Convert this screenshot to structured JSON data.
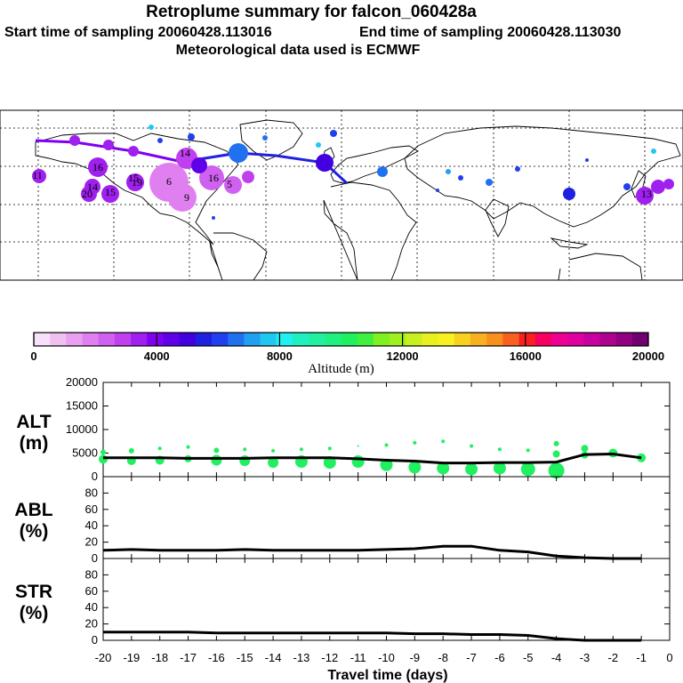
{
  "header": {
    "title": "Retroplume summary for falcon_060428a",
    "start_label": "Start time of sampling 20060428.113016",
    "end_label": "End time of sampling 20060428.113030",
    "met_label": "Meteorological data used is ECMWF"
  },
  "map_labels": [
    "16",
    "15",
    "6",
    "16",
    "5",
    "14",
    "20",
    "19",
    "15",
    "14",
    "11",
    "13",
    "9"
  ],
  "colorbar": {
    "title": "Altitude (m)",
    "ticks": [
      "0",
      "4000",
      "8000",
      "12000",
      "16000",
      "20000"
    ],
    "colors": [
      "#f8e0f8",
      "#f0c0f0",
      "#e8a0f0",
      "#e080f0",
      "#d060f0",
      "#c040f0",
      "#a020f0",
      "#8000f0",
      "#6000e8",
      "#4000e0",
      "#2020e0",
      "#2040f0",
      "#2070f0",
      "#20a0f0",
      "#20c8f0",
      "#20f0f0",
      "#20f0c0",
      "#20f0a0",
      "#20f080",
      "#20f060",
      "#40f040",
      "#80f020",
      "#a0f020",
      "#c8f020",
      "#e8f020",
      "#f8f020",
      "#f8d020",
      "#f8b020",
      "#f89020",
      "#f86020",
      "#f82020",
      "#f80060",
      "#f00090",
      "#e000a0",
      "#c800a0",
      "#b00090",
      "#900080",
      "#700070"
    ]
  },
  "chart_data": [
    {
      "type": "line",
      "name": "ALT",
      "ylabel": [
        "ALT",
        "(m)"
      ],
      "ylim": [
        0,
        20000
      ],
      "yticks": [
        "0",
        "5000",
        "10000",
        "15000",
        "20000"
      ],
      "x": [
        -20,
        -19,
        -18,
        -17,
        -16,
        -15,
        -14,
        -13,
        -12,
        -11,
        -10,
        -9,
        -8,
        -7,
        -6,
        -5,
        -4,
        -3,
        -2,
        -1
      ],
      "values": [
        4000,
        4000,
        4000,
        3900,
        3900,
        3900,
        4000,
        4000,
        4000,
        3800,
        3500,
        3300,
        2900,
        2900,
        3000,
        3000,
        3100,
        4700,
        4800,
        4000
      ],
      "clusters": [
        {
          "x": -20,
          "y": 5200,
          "r": 3
        },
        {
          "x": -20,
          "y": 3700,
          "r": 5
        },
        {
          "x": -19,
          "y": 5500,
          "r": 3
        },
        {
          "x": -19,
          "y": 3400,
          "r": 5
        },
        {
          "x": -18,
          "y": 6000,
          "r": 2
        },
        {
          "x": -18,
          "y": 3500,
          "r": 5
        },
        {
          "x": -17,
          "y": 6300,
          "r": 2
        },
        {
          "x": -17,
          "y": 3800,
          "r": 4
        },
        {
          "x": -16,
          "y": 5600,
          "r": 3
        },
        {
          "x": -16,
          "y": 3500,
          "r": 6
        },
        {
          "x": -15,
          "y": 5800,
          "r": 2
        },
        {
          "x": -15,
          "y": 3400,
          "r": 6
        },
        {
          "x": -14,
          "y": 5500,
          "r": 2
        },
        {
          "x": -14,
          "y": 3000,
          "r": 6
        },
        {
          "x": -13,
          "y": 5800,
          "r": 2
        },
        {
          "x": -13,
          "y": 3200,
          "r": 7
        },
        {
          "x": -12,
          "y": 6000,
          "r": 2
        },
        {
          "x": -12,
          "y": 3000,
          "r": 7
        },
        {
          "x": -11,
          "y": 6500,
          "r": 1
        },
        {
          "x": -11,
          "y": 3200,
          "r": 7
        },
        {
          "x": -10,
          "y": 6700,
          "r": 2
        },
        {
          "x": -10,
          "y": 2500,
          "r": 7
        },
        {
          "x": -9,
          "y": 7200,
          "r": 2
        },
        {
          "x": -9,
          "y": 2000,
          "r": 7
        },
        {
          "x": -8,
          "y": 7500,
          "r": 2
        },
        {
          "x": -8,
          "y": 1800,
          "r": 7
        },
        {
          "x": -7,
          "y": 6500,
          "r": 2
        },
        {
          "x": -7,
          "y": 1600,
          "r": 7
        },
        {
          "x": -6,
          "y": 5800,
          "r": 2
        },
        {
          "x": -6,
          "y": 1800,
          "r": 7
        },
        {
          "x": -5,
          "y": 5600,
          "r": 2
        },
        {
          "x": -5,
          "y": 1600,
          "r": 8
        },
        {
          "x": -4,
          "y": 7000,
          "r": 3
        },
        {
          "x": -4,
          "y": 4800,
          "r": 4
        },
        {
          "x": -4,
          "y": 1300,
          "r": 9
        },
        {
          "x": -3,
          "y": 6000,
          "r": 4
        },
        {
          "x": -3,
          "y": 4600,
          "r": 4
        },
        {
          "x": -2,
          "y": 5000,
          "r": 5
        },
        {
          "x": -1,
          "y": 4000,
          "r": 5
        }
      ]
    },
    {
      "type": "line",
      "name": "ABL",
      "ylabel": [
        "ABL",
        "(%)"
      ],
      "ylim": [
        0,
        100
      ],
      "yticks": [
        "0",
        "20",
        "40",
        "60",
        "80"
      ],
      "x": [
        -20,
        -19,
        -18,
        -17,
        -16,
        -15,
        -14,
        -13,
        -12,
        -11,
        -10,
        -9,
        -8,
        -7,
        -6,
        -5,
        -4,
        -3,
        -2,
        -1
      ],
      "values": [
        10,
        11,
        10,
        10,
        10,
        11,
        10,
        10,
        10,
        10,
        11,
        12,
        15,
        15,
        10,
        8,
        3,
        1,
        0,
        0
      ]
    },
    {
      "type": "line",
      "name": "STR",
      "ylabel": [
        "STR",
        "(%)"
      ],
      "ylim": [
        0,
        100
      ],
      "yticks": [
        "0",
        "20",
        "40",
        "60",
        "80"
      ],
      "x": [
        -20,
        -19,
        -18,
        -17,
        -16,
        -15,
        -14,
        -13,
        -12,
        -11,
        -10,
        -9,
        -8,
        -7,
        -6,
        -5,
        -4,
        -3,
        -2,
        -1
      ],
      "values": [
        10,
        10,
        10,
        10,
        9,
        9,
        9,
        9,
        9,
        9,
        9,
        8,
        8,
        7,
        7,
        6,
        2,
        0,
        0,
        0
      ]
    }
  ],
  "xaxis": {
    "label": "Travel time (days)",
    "ticks": [
      "-20",
      "-19",
      "-18",
      "-17",
      "-16",
      "-15",
      "-14",
      "-13",
      "-12",
      "-11",
      "-10",
      "-9",
      "-8",
      "-7",
      "-6",
      "-5",
      "-4",
      "-3",
      "-2",
      "-1",
      "0"
    ]
  }
}
